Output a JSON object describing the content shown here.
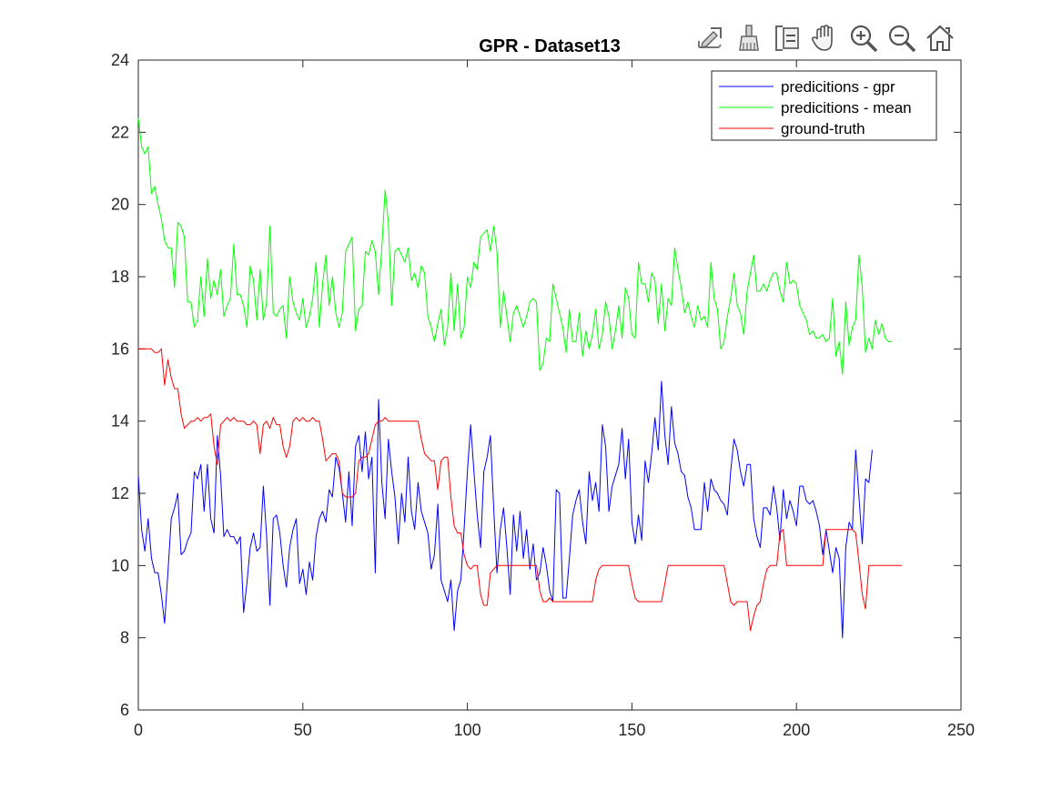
{
  "window": {
    "title": "GPR - Dataset13"
  },
  "toolbar": {
    "buttons": [
      {
        "icon": "export-icon"
      },
      {
        "icon": "brush-icon"
      },
      {
        "icon": "legend-toggle-icon"
      },
      {
        "icon": "pan-hand-icon"
      },
      {
        "icon": "zoom-in-icon"
      },
      {
        "icon": "zoom-out-icon"
      },
      {
        "icon": "home-icon"
      }
    ]
  },
  "chart_data": {
    "type": "line",
    "title": "GPR - Dataset13",
    "xlabel": "",
    "ylabel": "",
    "xlim": [
      0,
      250
    ],
    "ylim": [
      6,
      24
    ],
    "xticks": [
      0,
      50,
      100,
      150,
      200,
      250
    ],
    "yticks": [
      6,
      8,
      10,
      12,
      14,
      16,
      18,
      20,
      22,
      24
    ],
    "grid": false,
    "legend_position": "top-right",
    "series": [
      {
        "name": "predicitions - gpr",
        "color": "#0000ff",
        "values": [
          12.5,
          11.0,
          10.4,
          11.3,
          10.2,
          9.8,
          9.8,
          9.2,
          8.4,
          9.8,
          11.3,
          11.6,
          12.0,
          10.3,
          10.4,
          10.7,
          10.9,
          12.6,
          12.4,
          12.8,
          11.5,
          12.8,
          11.3,
          10.9,
          13.6,
          12.5,
          10.8,
          11.0,
          10.8,
          10.8,
          10.6,
          10.8,
          8.7,
          9.5,
          10.5,
          10.9,
          10.4,
          10.5,
          12.2,
          10.8,
          8.9,
          11.3,
          11.4,
          10.9,
          10.0,
          9.4,
          10.5,
          11.0,
          11.3,
          9.5,
          9.9,
          9.2,
          10.1,
          9.6,
          10.8,
          11.3,
          11.5,
          11.2,
          12.1,
          11.9,
          13.0,
          12.7,
          12.0,
          11.2,
          12.6,
          11.1,
          13.3,
          13.6,
          12.6,
          13.7,
          12.4,
          13.0,
          9.8,
          14.6,
          12.3,
          11.3,
          13.5,
          12.6,
          11.9,
          10.6,
          12.0,
          11.2,
          13.0,
          11.5,
          11.0,
          12.3,
          11.5,
          11.2,
          10.9,
          9.9,
          10.3,
          11.7,
          9.6,
          9.3,
          9.0,
          9.6,
          8.2,
          9.3,
          9.6,
          11.0,
          12.6,
          13.9,
          12.6,
          11.4,
          10.5,
          12.6,
          13.0,
          13.6,
          11.6,
          9.8,
          11.0,
          11.6,
          10.5,
          9.2,
          11.4,
          10.4,
          11.5,
          10.2,
          11.0,
          9.9,
          10.6,
          9.6,
          9.8,
          10.5,
          10.0,
          9.3,
          9.0,
          12.1,
          12.0,
          9.1,
          9.1,
          10.2,
          11.4,
          11.8,
          12.1,
          11.2,
          10.6,
          12.6,
          11.8,
          12.3,
          11.5,
          13.9,
          13.3,
          11.5,
          12.2,
          12.5,
          12.8,
          13.8,
          12.4,
          13.5,
          11.2,
          10.6,
          11.4,
          10.7,
          12.9,
          12.3,
          13.1,
          14.1,
          13.2,
          15.1,
          13.6,
          12.8,
          14.4,
          13.4,
          13.1,
          12.6,
          12.5,
          11.9,
          11.6,
          11.0,
          11.0,
          11.0,
          12.3,
          11.5,
          12.4,
          12.1,
          12.0,
          11.8,
          11.7,
          11.4,
          12.6,
          13.5,
          13.2,
          12.6,
          12.2,
          12.8,
          12.8,
          11.3,
          10.8,
          10.5,
          11.6,
          11.6,
          11.4,
          12.2,
          11.6,
          10.7,
          12.1,
          11.3,
          11.8,
          11.5,
          11.1,
          12.2,
          12.2,
          11.8,
          11.7,
          11.8,
          11.5,
          11.1,
          10.3,
          11.0,
          10.4,
          9.8,
          10.5,
          10.2,
          8.0,
          10.5,
          11.2,
          11.0,
          13.2,
          11.9,
          10.6,
          12.4,
          12.3,
          13.2
        ]
      },
      {
        "name": "predicitions - mean",
        "color": "#00ff00",
        "values": [
          22.4,
          21.6,
          21.4,
          21.6,
          20.3,
          20.5,
          20.0,
          19.6,
          19.0,
          18.8,
          18.8,
          17.7,
          19.5,
          19.4,
          19.1,
          17.3,
          17.3,
          16.6,
          16.8,
          18.0,
          16.9,
          18.5,
          17.4,
          17.9,
          17.5,
          18.2,
          16.9,
          17.2,
          17.4,
          18.9,
          17.5,
          17.5,
          17.2,
          16.6,
          18.3,
          17.9,
          16.8,
          18.2,
          16.8,
          17.3,
          19.4,
          17.0,
          16.9,
          17.1,
          17.2,
          16.3,
          18.0,
          17.3,
          17.0,
          16.8,
          17.4,
          16.6,
          16.9,
          17.4,
          18.4,
          16.6,
          17.8,
          18.6,
          17.2,
          18.0,
          17.0,
          16.6,
          17.0,
          18.7,
          18.9,
          19.1,
          16.5,
          17.1,
          17.2,
          18.7,
          18.6,
          19.0,
          18.7,
          17.5,
          18.8,
          20.4,
          19.5,
          17.2,
          18.7,
          18.8,
          18.6,
          18.4,
          18.8,
          17.9,
          18.1,
          17.7,
          18.3,
          18.1,
          16.9,
          16.6,
          16.2,
          16.7,
          17.1,
          16.1,
          16.6,
          18.1,
          16.5,
          17.8,
          16.3,
          16.6,
          18.0,
          17.7,
          18.4,
          18.2,
          19.1,
          19.2,
          19.3,
          18.7,
          19.4,
          18.7,
          16.6,
          17.6,
          16.9,
          16.2,
          17.0,
          17.2,
          16.9,
          16.6,
          16.9,
          17.3,
          17.4,
          17.3,
          15.4,
          15.6,
          16.3,
          16.2,
          17.8,
          17.4,
          17.0,
          16.6,
          15.9,
          17.1,
          16.2,
          16.2,
          17.0,
          15.8,
          16.5,
          16.0,
          16.4,
          17.1,
          16.0,
          16.4,
          17.3,
          16.9,
          16.0,
          16.5,
          17.2,
          16.3,
          17.7,
          17.4,
          16.4,
          16.3,
          18.4,
          17.8,
          17.8,
          17.3,
          18.1,
          17.9,
          16.7,
          17.8,
          16.5,
          17.4,
          17.2,
          18.8,
          18.2,
          17.7,
          17.0,
          17.3,
          16.9,
          16.6,
          17.2,
          16.8,
          16.9,
          16.6,
          18.4,
          17.4,
          17.1,
          16.0,
          16.2,
          16.9,
          17.4,
          18.1,
          17.2,
          17.0,
          16.4,
          17.6,
          18.1,
          18.6,
          17.6,
          17.6,
          17.8,
          17.6,
          17.9,
          18.1,
          18.1,
          17.6,
          17.3,
          18.4,
          17.8,
          17.9,
          17.8,
          17.2,
          17.0,
          16.8,
          16.4,
          16.5,
          16.3,
          16.3,
          16.4,
          16.2,
          16.3,
          17.4,
          15.8,
          16.2,
          15.3,
          17.3,
          16.1,
          16.6,
          16.8,
          18.6,
          17.7,
          15.9,
          16.3,
          16.0,
          16.8,
          16.4,
          16.7,
          16.3,
          16.2,
          16.2
        ]
      },
      {
        "name": "ground-truth",
        "color": "#ff0000",
        "values": [
          16.0,
          16.0,
          16.0,
          16.0,
          16.0,
          15.9,
          15.9,
          16.0,
          15.0,
          15.7,
          15.2,
          14.9,
          14.9,
          14.2,
          13.8,
          13.9,
          14.0,
          14.0,
          14.1,
          14.0,
          14.1,
          14.1,
          14.2,
          13.3,
          12.8,
          13.9,
          14.0,
          14.1,
          14.0,
          14.1,
          14.0,
          14.0,
          14.0,
          13.9,
          13.9,
          14.0,
          13.9,
          13.1,
          13.9,
          14.0,
          13.8,
          14.1,
          13.9,
          13.9,
          13.3,
          13.0,
          13.3,
          14.0,
          14.1,
          14.0,
          14.1,
          14.0,
          14.0,
          14.1,
          14.0,
          14.0,
          13.5,
          12.9,
          13.0,
          13.1,
          13.1,
          12.9,
          12.0,
          11.9,
          11.9,
          11.9,
          12.0,
          12.9,
          13.0,
          13.0,
          13.1,
          13.5,
          13.9,
          14.0,
          14.0,
          14.1,
          14.0,
          14.0,
          14.0,
          14.0,
          14.0,
          14.0,
          14.0,
          14.0,
          14.0,
          14.0,
          13.5,
          13.1,
          13.0,
          12.9,
          12.9,
          12.1,
          12.9,
          13.0,
          13.0,
          11.9,
          11.1,
          10.9,
          10.9,
          10.3,
          10.0,
          9.9,
          10.0,
          10.0,
          9.2,
          8.9,
          8.9,
          9.8,
          9.9,
          10.0,
          10.0,
          10.0,
          10.0,
          10.0,
          10.0,
          10.0,
          10.0,
          10.0,
          10.0,
          10.0,
          10.0,
          10.0,
          9.3,
          9.0,
          9.0,
          9.1,
          9.0,
          9.0,
          9.0,
          9.0,
          9.0,
          9.0,
          9.0,
          9.0,
          9.0,
          9.0,
          9.0,
          9.0,
          9.0,
          9.6,
          9.9,
          10.0,
          10.0,
          10.0,
          10.0,
          10.0,
          10.0,
          10.0,
          10.0,
          10.0,
          9.5,
          9.1,
          9.0,
          9.0,
          9.0,
          9.0,
          9.0,
          9.0,
          9.0,
          9.0,
          9.5,
          10.0,
          10.0,
          10.0,
          10.0,
          10.0,
          10.0,
          10.0,
          10.0,
          10.0,
          10.0,
          10.0,
          10.0,
          10.0,
          10.0,
          10.0,
          10.0,
          10.0,
          10.0,
          9.5,
          9.0,
          8.9,
          9.0,
          9.0,
          9.0,
          9.0,
          8.2,
          8.6,
          8.9,
          9.0,
          9.5,
          9.9,
          10.0,
          10.0,
          10.0,
          10.9,
          11.0,
          10.0,
          10.0,
          10.0,
          10.0,
          10.0,
          10.0,
          10.0,
          10.0,
          10.0,
          10.0,
          10.0,
          10.0,
          11.0,
          11.0,
          11.0,
          11.0,
          11.0,
          11.0,
          11.0,
          11.0,
          11.0,
          10.9,
          10.1,
          9.2,
          8.8,
          10.0,
          10.0,
          10.0,
          10.0,
          10.0,
          10.0,
          10.0,
          10.0,
          10.0,
          10.0,
          10.0
        ]
      }
    ]
  }
}
